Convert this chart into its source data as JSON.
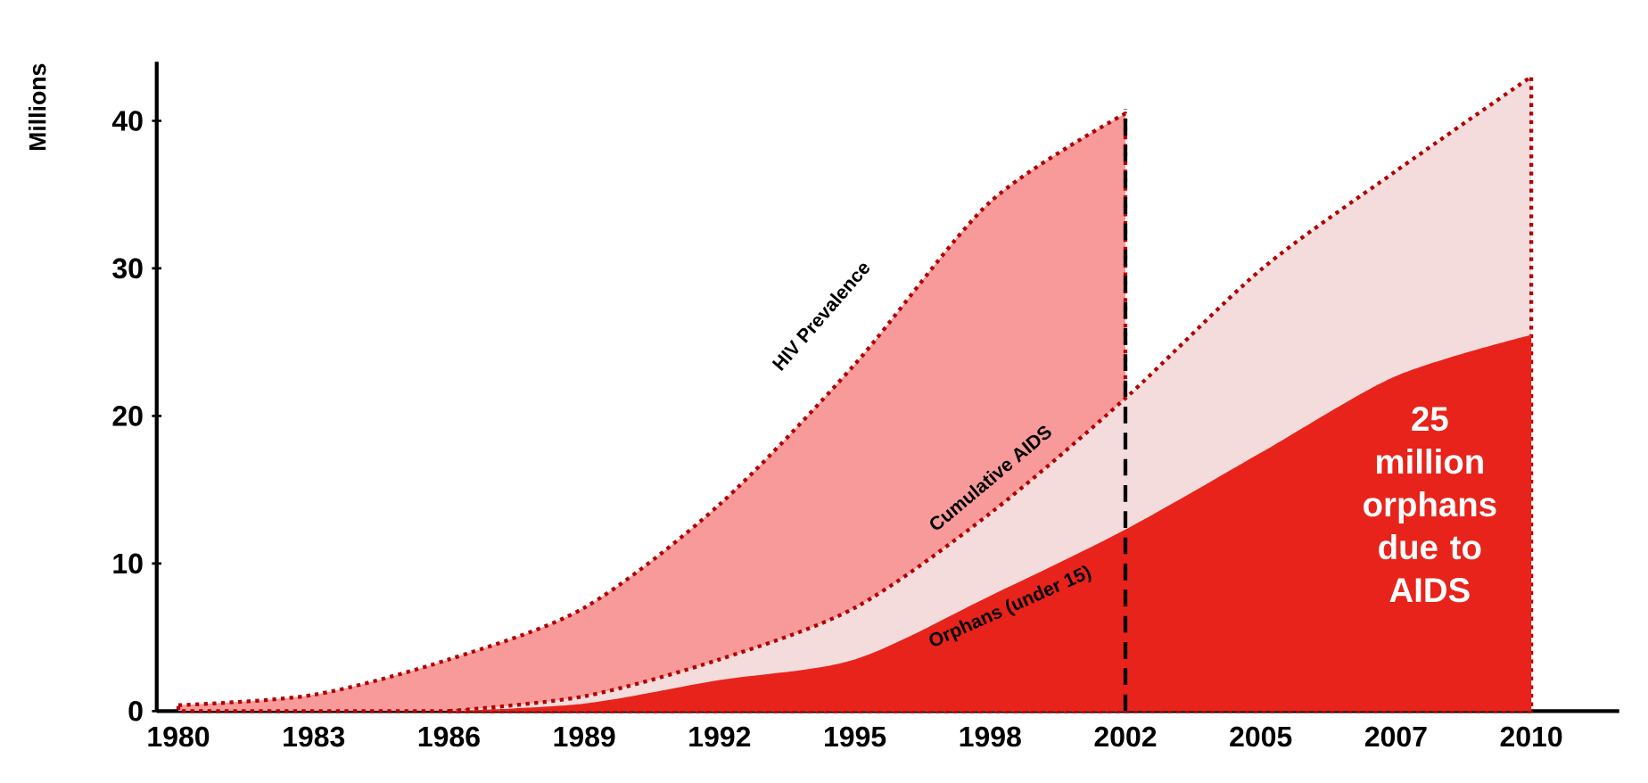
{
  "chart_data": {
    "type": "area",
    "ylabel": "Millions",
    "categories": [
      "1980",
      "1983",
      "1986",
      "1989",
      "1992",
      "1995",
      "1998",
      "2002",
      "2005",
      "2007",
      "2010"
    ],
    "series": [
      {
        "color": "#f99a9a",
        "line_style": "dotted",
        "values": [
          0.4,
          1.1,
          3.5,
          7,
          14,
          23.5,
          34.5,
          40.5,
          null,
          null,
          null
        ]
      },
      {
        "color": "#f4dcdc",
        "line_style": "dotted",
        "values": [
          null,
          null,
          0,
          1,
          3.5,
          7,
          13.4,
          21.2,
          29.9,
          36.6,
          43
        ]
      },
      {
        "color": "#e8231b",
        "values": [
          null,
          null,
          0,
          0.5,
          2.1,
          3.5,
          7.8,
          12.3,
          17.5,
          22.7,
          25.5
        ]
      }
    ],
    "ylim": [
      0,
      44
    ],
    "yticks": [
      0,
      10,
      20,
      30,
      40
    ],
    "grid": false,
    "ref_lines": [
      {
        "axis": "x",
        "value": "2002",
        "color": "#000000",
        "line_style": "dashed"
      }
    ],
    "annotations": [
      "HIV Prevalence",
      "Cumulative AIDS",
      "Orphans (under 15)",
      "25 million orphans due to AIDS"
    ]
  }
}
